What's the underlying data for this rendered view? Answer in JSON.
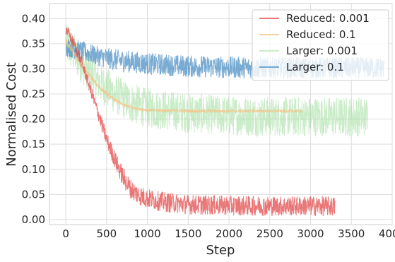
{
  "chart_data": {
    "type": "line",
    "xlabel": "Step",
    "ylabel": "Normalised Cost",
    "xlim": [
      -200,
      4000
    ],
    "ylim": [
      -0.01,
      0.43
    ],
    "xticks": [
      0,
      500,
      1000,
      1500,
      2000,
      2500,
      3000,
      3500,
      4000
    ],
    "yticks": [
      0.0,
      0.05,
      0.1,
      0.15,
      0.2,
      0.25,
      0.3,
      0.35,
      0.4
    ],
    "grid": true,
    "legend_position": "top-right",
    "series": [
      {
        "name": "Reduced: 0.001",
        "color": "#e24a4a",
        "opacity": 0.75,
        "x": [
          0,
          100,
          200,
          300,
          400,
          500,
          600,
          700,
          800,
          900,
          1000,
          1200,
          1500,
          2000,
          2500,
          3000,
          3300
        ],
        "y": [
          0.38,
          0.35,
          0.31,
          0.26,
          0.21,
          0.16,
          0.12,
          0.085,
          0.06,
          0.048,
          0.042,
          0.035,
          0.03,
          0.028,
          0.027,
          0.027,
          0.026
        ],
        "noise": [
          0.012,
          0.012,
          0.012,
          0.012,
          0.014,
          0.016,
          0.018,
          0.02,
          0.02,
          0.02,
          0.02,
          0.02,
          0.02,
          0.02,
          0.02,
          0.02,
          0.02
        ]
      },
      {
        "name": "Reduced: 0.1",
        "color": "#f2c48a",
        "opacity": 0.8,
        "x": [
          0,
          100,
          200,
          300,
          400,
          500,
          600,
          700,
          800,
          900,
          1000,
          1200,
          1500,
          2000,
          2500,
          2900
        ],
        "y": [
          0.355,
          0.33,
          0.305,
          0.285,
          0.265,
          0.25,
          0.238,
          0.229,
          0.223,
          0.22,
          0.218,
          0.217,
          0.216,
          0.216,
          0.216,
          0.216
        ],
        "noise": [
          0.006,
          0.006,
          0.005,
          0.005,
          0.004,
          0.004,
          0.004,
          0.003,
          0.003,
          0.003,
          0.003,
          0.003,
          0.003,
          0.003,
          0.003,
          0.003
        ]
      },
      {
        "name": "Larger: 0.001",
        "color": "#9fdc9a",
        "opacity": 0.55,
        "x": [
          0,
          200,
          400,
          600,
          800,
          1000,
          1500,
          2000,
          2500,
          3000,
          3500,
          3700
        ],
        "y": [
          0.35,
          0.31,
          0.275,
          0.25,
          0.232,
          0.222,
          0.212,
          0.207,
          0.205,
          0.205,
          0.205,
          0.205
        ],
        "noise": [
          0.04,
          0.04,
          0.04,
          0.04,
          0.04,
          0.04,
          0.04,
          0.04,
          0.04,
          0.04,
          0.04,
          0.04
        ]
      },
      {
        "name": "Larger: 0.1",
        "color": "#4c8fc4",
        "opacity": 0.75,
        "x": [
          0,
          200,
          400,
          600,
          1000,
          1500,
          2000,
          2500,
          3000,
          3500,
          3900
        ],
        "y": [
          0.345,
          0.335,
          0.325,
          0.318,
          0.31,
          0.305,
          0.303,
          0.302,
          0.302,
          0.302,
          0.302
        ],
        "noise": [
          0.02,
          0.02,
          0.02,
          0.022,
          0.022,
          0.022,
          0.022,
          0.022,
          0.022,
          0.022,
          0.022
        ]
      }
    ]
  }
}
